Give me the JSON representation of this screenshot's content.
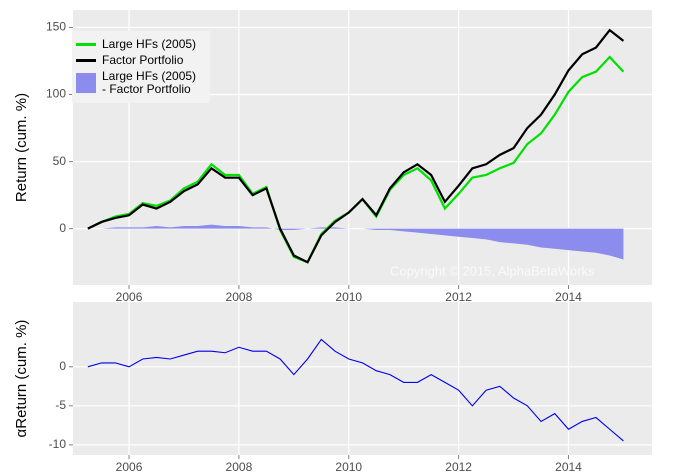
{
  "chart_data": [
    {
      "type": "line",
      "ylabel": "Return (cum. %)",
      "annotation": "Copyright © 2015, AlphaBetaWorks",
      "x": [
        2005.25,
        2005.5,
        2005.75,
        2006.0,
        2006.25,
        2006.5,
        2006.75,
        2007.0,
        2007.25,
        2007.5,
        2007.75,
        2008.0,
        2008.25,
        2008.5,
        2008.75,
        2009.0,
        2009.25,
        2009.5,
        2009.75,
        2010.0,
        2010.25,
        2010.5,
        2010.75,
        2011.0,
        2011.25,
        2011.5,
        2011.75,
        2012.0,
        2012.25,
        2012.5,
        2012.75,
        2013.0,
        2013.25,
        2013.5,
        2013.75,
        2014.0,
        2014.25,
        2014.5,
        2014.75,
        2015.0
      ],
      "series": [
        {
          "name": "Large HFs (2005)",
          "color": "#00e000",
          "kind": "line",
          "values": [
            0,
            5,
            9,
            11,
            19,
            17,
            21,
            30,
            35,
            48,
            40,
            40,
            26,
            31,
            -1,
            -21,
            -25,
            -4,
            6,
            12,
            22,
            9,
            29,
            40,
            45,
            36,
            15,
            26,
            38,
            40,
            45,
            49,
            63,
            71,
            85,
            102,
            113,
            117,
            128,
            117
          ]
        },
        {
          "name": "Factor Portfolio",
          "color": "#000000",
          "kind": "line",
          "values": [
            0,
            5,
            8,
            10,
            18,
            15,
            20,
            28,
            33,
            45,
            38,
            38,
            25,
            30,
            0,
            -20,
            -25,
            -5,
            5,
            12,
            22,
            10,
            30,
            42,
            48,
            40,
            20,
            32,
            45,
            48,
            55,
            60,
            75,
            85,
            100,
            118,
            130,
            135,
            148,
            140
          ]
        },
        {
          "name": "Large HFs (2005)\n- Factor Portfolio",
          "color": "#8c8cee",
          "kind": "area",
          "values": [
            0,
            0,
            1,
            1,
            1,
            2,
            1,
            2,
            2,
            3,
            2,
            2,
            1,
            1,
            -1,
            -1,
            0,
            1,
            1,
            0,
            0,
            -1,
            -1,
            -2,
            -3,
            -4,
            -5,
            -6,
            -7,
            -8,
            -10,
            -11,
            -12,
            -14,
            -15,
            -16,
            -17,
            -18,
            -20,
            -23
          ]
        }
      ],
      "xlim": [
        2004.98,
        2015.52
      ],
      "xticks": [
        2006,
        2008,
        2010,
        2012,
        2014
      ],
      "ylim": [
        -42,
        163
      ],
      "yticks": [
        0,
        50,
        100,
        150
      ],
      "grid": true
    },
    {
      "type": "line",
      "ylabel": "αReturn (cum. %)",
      "x": [
        2005.25,
        2005.5,
        2005.75,
        2006.0,
        2006.25,
        2006.5,
        2006.75,
        2007.0,
        2007.25,
        2007.5,
        2007.75,
        2008.0,
        2008.25,
        2008.5,
        2008.75,
        2009.0,
        2009.25,
        2009.5,
        2009.75,
        2010.0,
        2010.25,
        2010.5,
        2010.75,
        2011.0,
        2011.25,
        2011.5,
        2011.75,
        2012.0,
        2012.25,
        2012.5,
        2012.75,
        2013.0,
        2013.25,
        2013.5,
        2013.75,
        2014.0,
        2014.25,
        2014.5,
        2014.75,
        2015.0
      ],
      "series": [
        {
          "color": "#0000ee",
          "kind": "line",
          "values": [
            0,
            0.5,
            0.5,
            0,
            1,
            1.2,
            1,
            1.5,
            2,
            2,
            1.8,
            2.5,
            2,
            2,
            1,
            -1,
            1,
            3.5,
            2,
            1,
            0.5,
            -0.5,
            -1,
            -2,
            -2,
            -1,
            -2,
            -3,
            -5,
            -3,
            -2.5,
            -4,
            -5,
            -7,
            -6,
            -8,
            -7,
            -6.5,
            -8,
            -9.5
          ]
        }
      ],
      "xlim": [
        2004.98,
        2015.52
      ],
      "xticks": [
        2006,
        2008,
        2010,
        2012,
        2014
      ],
      "ylim": [
        -11.3,
        8.3
      ],
      "yticks": [
        0,
        -5,
        -10
      ],
      "grid": true
    }
  ]
}
